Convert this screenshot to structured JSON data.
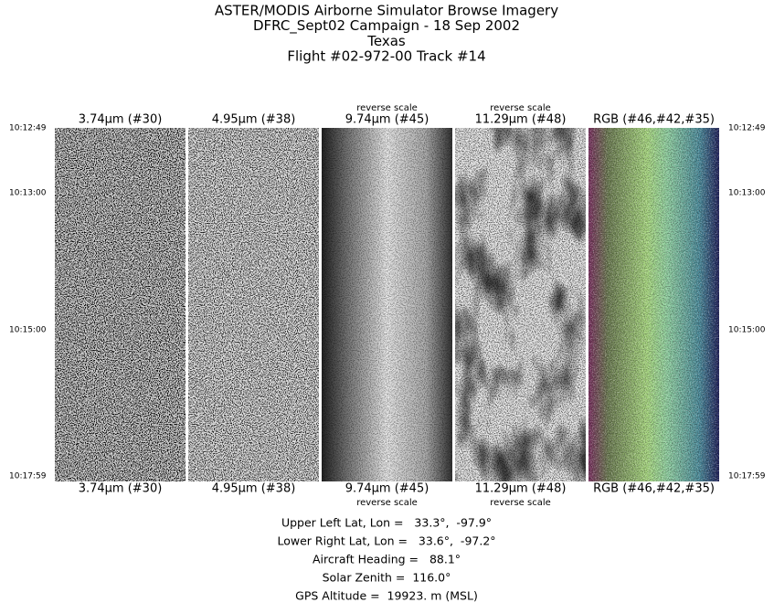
{
  "header": {
    "title_lines": [
      "ASTER/MODIS Airborne Simulator Browse Imagery",
      "DFRC_Sept02 Campaign - 18 Sep 2002",
      "Texas",
      "Flight #02-972-00 Track #14"
    ]
  },
  "times": [
    "10:12:49",
    "10:13:00",
    "10:15:00",
    "10:17:59"
  ],
  "panels": [
    {
      "label": "3.74μm (#30)"
    },
    {
      "label": "4.95μm (#38)"
    },
    {
      "label": "9.74μm (#45)",
      "note": "reverse scale"
    },
    {
      "label": "11.29μm (#48)",
      "note": "reverse scale"
    },
    {
      "label": "RGB (#46,#42,#35)"
    }
  ],
  "info": [
    "Upper Left Lat, Lon =   33.3°,  -97.9°",
    "Lower Right Lat, Lon =   33.6°,  -97.2°",
    "Aircraft Heading =   88.1°",
    "Solar Zenith =  116.0°",
    "GPS Altitude =  19923. m (MSL)"
  ]
}
